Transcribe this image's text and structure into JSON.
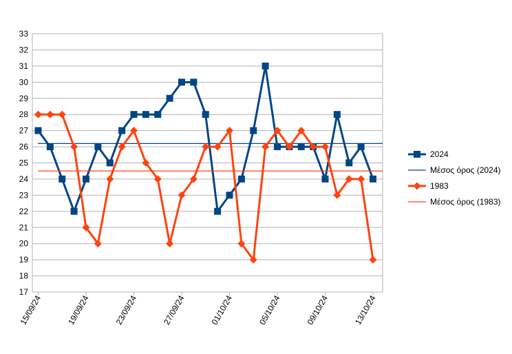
{
  "chart_data": {
    "type": "line",
    "title": "",
    "xlabel": "",
    "ylabel": "",
    "ylim": [
      17,
      33
    ],
    "ytick_step": 1,
    "grid": true,
    "legend_position": "right",
    "x": [
      "15/09/24",
      "16/09/24",
      "17/09/24",
      "18/09/24",
      "19/09/24",
      "20/09/24",
      "21/09/24",
      "22/09/24",
      "23/09/24",
      "24/09/24",
      "25/09/24",
      "26/09/24",
      "27/09/24",
      "28/09/24",
      "29/09/24",
      "30/09/24",
      "01/10/24",
      "02/10/24",
      "03/10/24",
      "04/10/24",
      "05/10/24",
      "06/10/24",
      "07/10/24",
      "08/10/24",
      "09/10/24",
      "10/10/24",
      "11/10/24",
      "12/10/24",
      "13/10/24"
    ],
    "x_tick_labels": [
      "15/09/24",
      "19/09/24",
      "23/09/24",
      "27/09/24",
      "01/10/24",
      "05/10/24",
      "09/10/24",
      "13/10/24"
    ],
    "series": [
      {
        "name": "2024",
        "color": "#004586",
        "marker": "square",
        "values": [
          27,
          26,
          24,
          22,
          24,
          26,
          25,
          27,
          28,
          28,
          28,
          29,
          30,
          30,
          28,
          22,
          23,
          24,
          27,
          31,
          26,
          26,
          26,
          26,
          24,
          28,
          25,
          26,
          24
        ]
      },
      {
        "name": "Μέσος όρος (2024)",
        "color": "#004586",
        "marker": "none",
        "value": 26.2
      },
      {
        "name": "1983",
        "color": "#ff420e",
        "marker": "diamond",
        "values": [
          28,
          28,
          28,
          26,
          21,
          20,
          24,
          26,
          27,
          25,
          24,
          20,
          23,
          24,
          26,
          26,
          27,
          20,
          19,
          26,
          27,
          26,
          27,
          26,
          26,
          23,
          24,
          24,
          19
        ]
      },
      {
        "name": "Μέσος όρος (1983)",
        "color": "#ff420e",
        "marker": "none",
        "value": 24.5
      }
    ]
  }
}
